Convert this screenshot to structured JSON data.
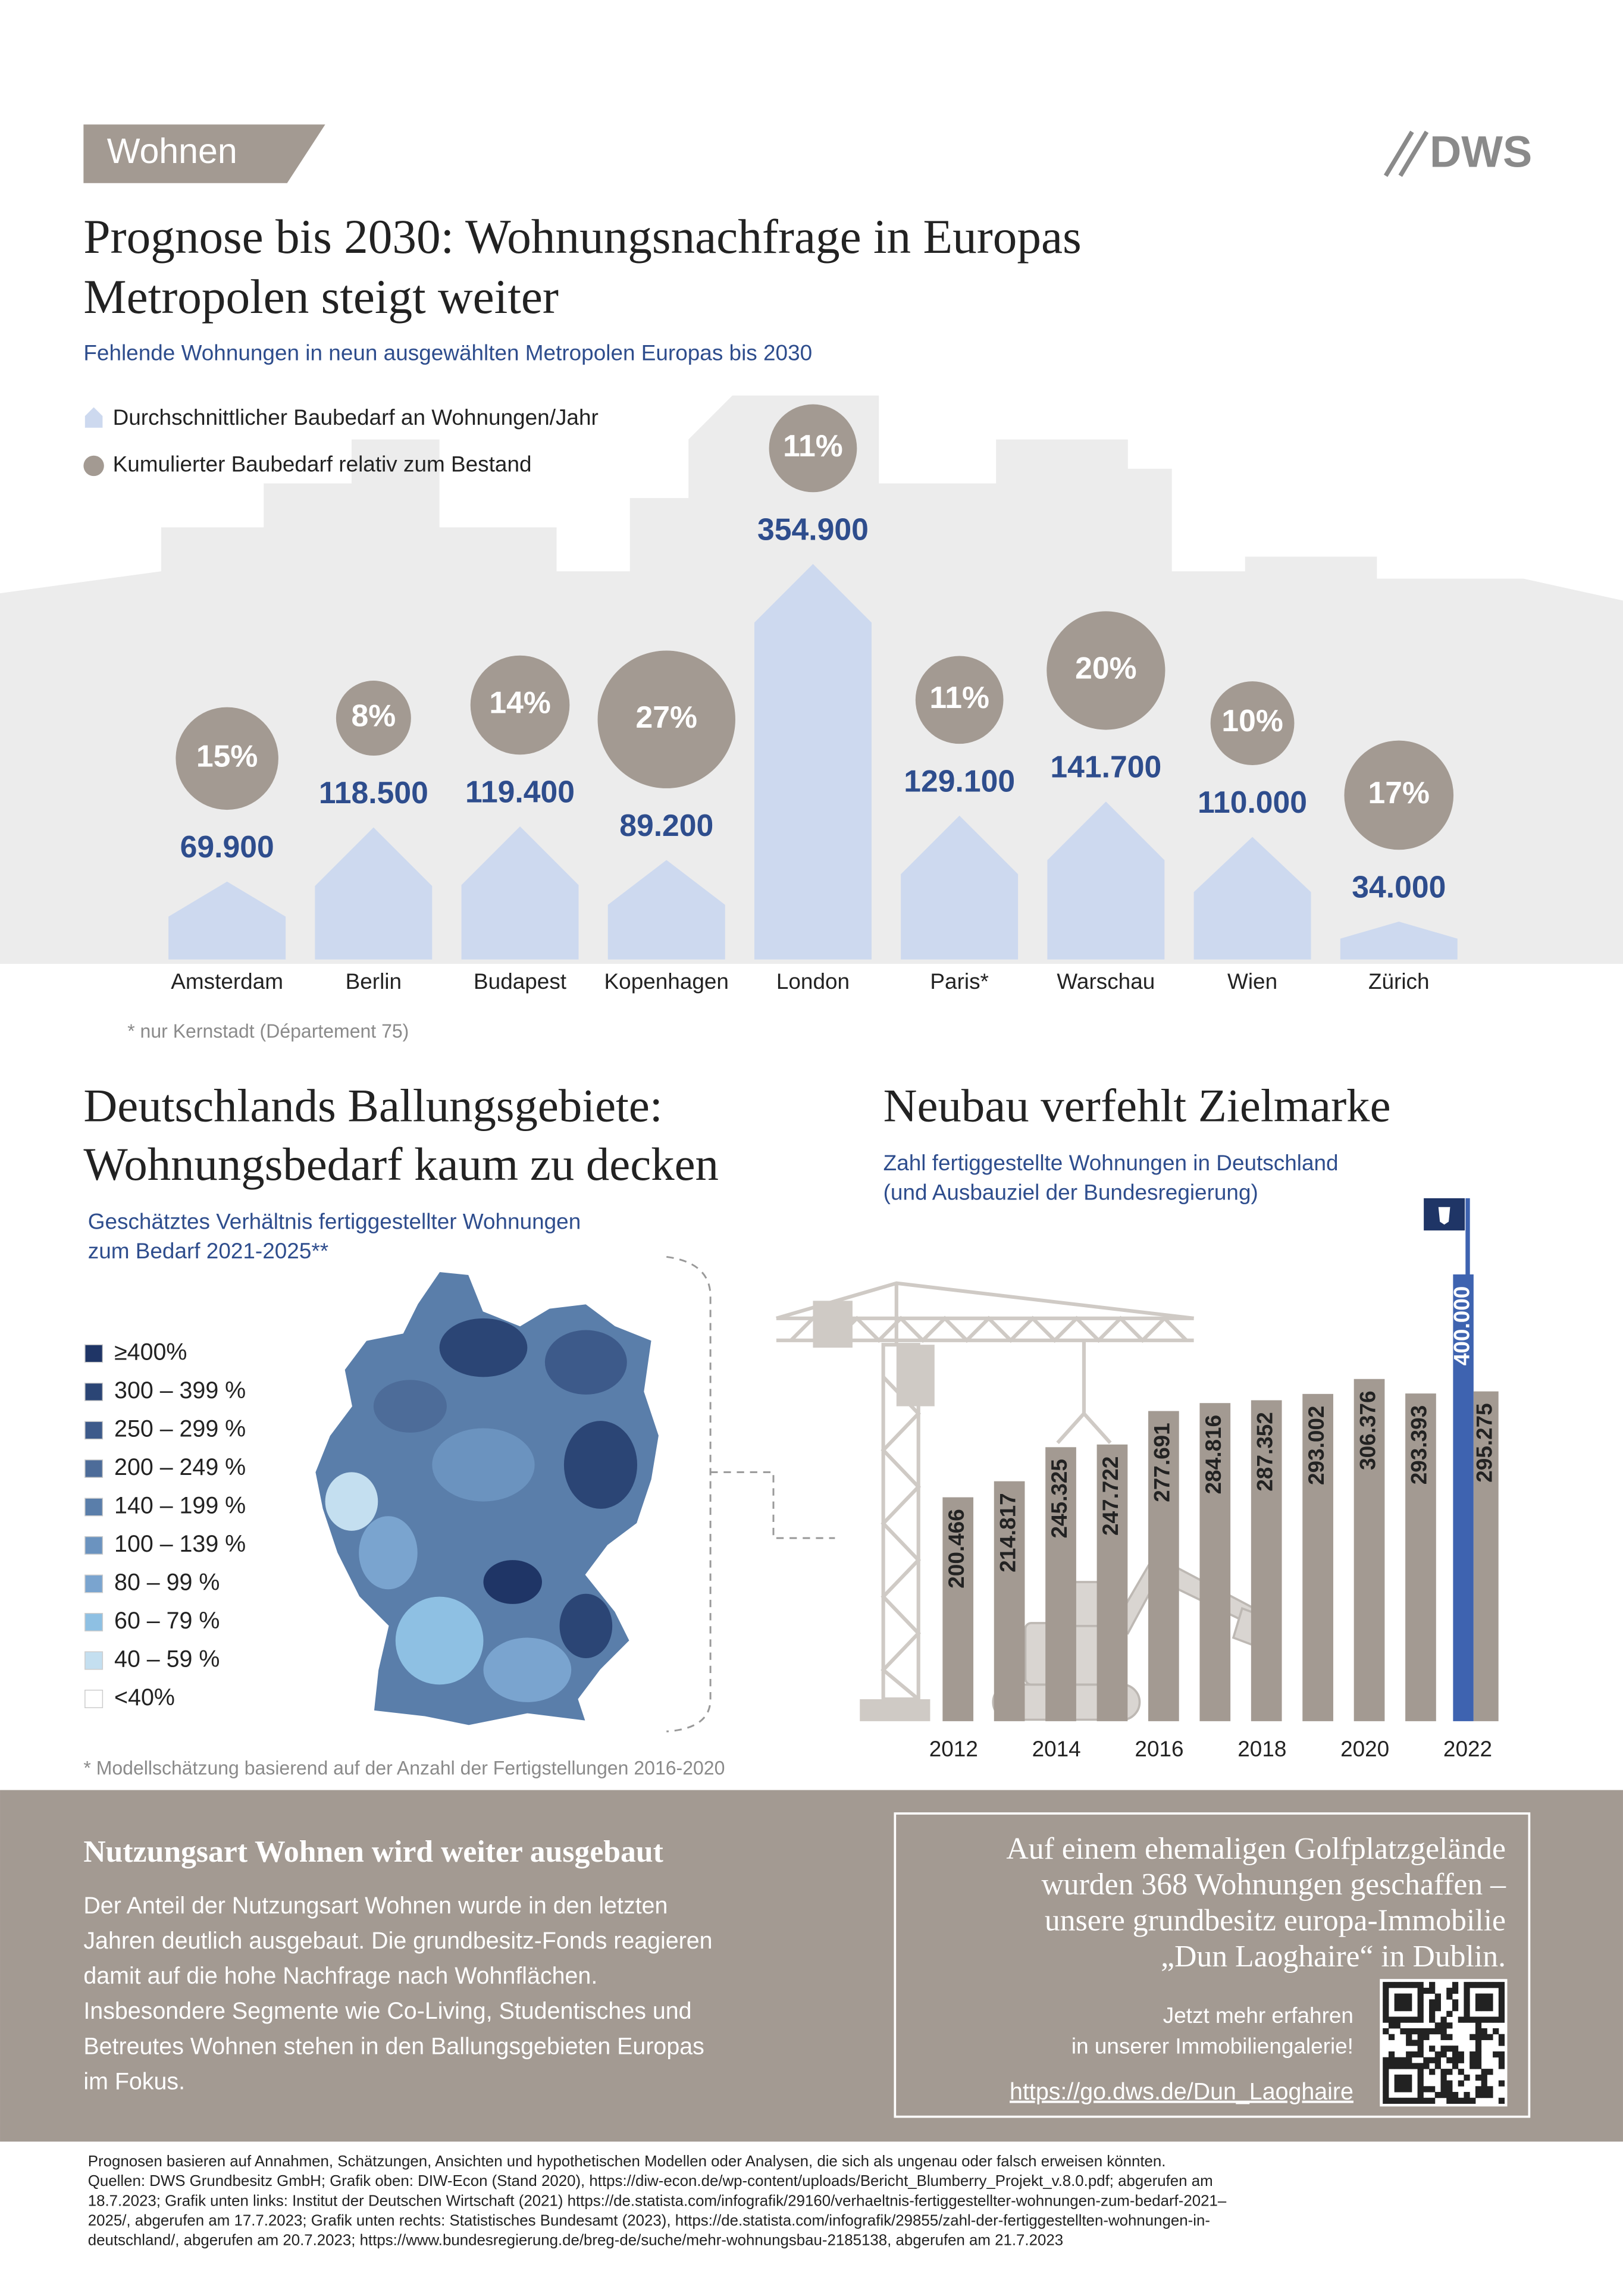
{
  "header": {
    "tag": "Wohnen",
    "logo": "DWS"
  },
  "chart_data": [
    {
      "type": "bar",
      "shape": "house",
      "title": [
        "Prognose bis 2030: Wohnungsnachfrage in Europas",
        "Metropolen steigt weiter"
      ],
      "subtitle": "Fehlende Wohnungen in neun ausgewählten Metropolen Europas bis 2030",
      "categories": [
        "Amsterdam",
        "Berlin",
        "Budapest",
        "Kopenhagen",
        "London",
        "Paris*",
        "Warschau",
        "Wien",
        "Zürich"
      ],
      "series": [
        {
          "name": "Durchschnittlicher Baubedarf an Wohnungen/Jahr",
          "color": "#cdd9ef",
          "values": [
            69900,
            118500,
            119400,
            89200,
            354900,
            129100,
            141700,
            110000,
            34000
          ],
          "value_labels": [
            "69.900",
            "118.500",
            "119.400",
            "89.200",
            "354.900",
            "129.100",
            "141.700",
            "110.000",
            "34.000"
          ]
        },
        {
          "name": "Kumulierter Baubedarf relativ zum Bestand",
          "color": "#a39a92",
          "type": "bubble",
          "values": [
            15,
            8,
            14,
            27,
            11,
            11,
            20,
            10,
            17
          ],
          "value_labels": [
            "15%",
            "8%",
            "14%",
            "27%",
            "11%",
            "11%",
            "20%",
            "10%",
            "17%"
          ]
        }
      ],
      "note": "* nur Kernstadt (Département 75)"
    },
    {
      "type": "bar",
      "title": "Neubau verfehlt Zielmarke",
      "subtitle": [
        "Zahl fertiggestellte Wohnungen in Deutschland",
        "(und Ausbauziel der Bundesregierung)"
      ],
      "categories": [
        "2012",
        null,
        "2014",
        null,
        "2016",
        null,
        "2018",
        null,
        "2020",
        null,
        "2022"
      ],
      "series": [
        {
          "color": "#a39a92",
          "values": [
            200466,
            214817,
            245325,
            247722,
            277691,
            284816,
            287352,
            293002,
            306376,
            293393,
            295275
          ],
          "value_labels": [
            "200.466",
            "214.817",
            "245.325",
            "247.722",
            "277.691",
            "284.816",
            "287.352",
            "293.002",
            "306.376",
            "293.393",
            "295.275"
          ]
        }
      ],
      "target": {
        "value": 400000,
        "label": "400.000",
        "color": "#3e63b0"
      }
    }
  ],
  "map": {
    "title": [
      "Deutschlands Ballungsgebiete:",
      "Wohnungsbedarf kaum zu decken"
    ],
    "subtitle": [
      "Geschätztes Verhältnis fertiggestellter Wohnungen",
      "zum Bedarf 2021-2025**"
    ],
    "legend": [
      {
        "label": "≥400%",
        "color": "#1f3566"
      },
      {
        "label": "300 – 399 %",
        "color": "#2b4575"
      },
      {
        "label": "250 – 299 %",
        "color": "#3d5a8a"
      },
      {
        "label": "200 – 249 %",
        "color": "#4d6c99"
      },
      {
        "label": "140 – 199 %",
        "color": "#5a7eaa"
      },
      {
        "label": "100 – 139 %",
        "color": "#6b93bf"
      },
      {
        "label": "80 – 99 %",
        "color": "#7aa4cf"
      },
      {
        "label": "60 – 79 %",
        "color": "#8ec0e3"
      },
      {
        "label": "40 – 59 %",
        "color": "#c4dff0"
      },
      {
        "label": "<40%",
        "color": "#ffffff"
      }
    ],
    "note": "* Modellschätzung basierend auf der Anzahl der Fertigstellungen 2016-2020"
  },
  "info": {
    "heading": "Nutzungsart Wohnen wird weiter ausgebaut",
    "paragraph": [
      "Der Anteil der Nutzungsart Wohnen wurde in den letzten",
      "Jahren deutlich ausgebaut. Die grundbesitz-Fonds reagieren",
      "damit auf die hohe Nachfrage nach Wohnflächen.",
      "Insbesondere Segmente wie Co-Living, Studentisches und",
      "Betreutes Wohnen stehen in den Ballungsgebieten Europas",
      "im Fokus."
    ]
  },
  "promo": {
    "lines": [
      "Auf einem ehemaligen Golfplatzgelände",
      "wurden 368 Wohnungen geschaffen –",
      "unsere grundbesitz europa-Immobilie",
      "„Dun Laoghaire“ in Dublin."
    ],
    "cta": [
      "Jetzt mehr erfahren",
      "in unserer Immobiliengalerie!"
    ],
    "link": "https://go.dws.de/Dun_Laoghaire"
  },
  "footer": [
    "Prognosen basieren auf Annahmen, Schätzungen, Ansichten und hypothetischen Modellen oder Analysen, die sich als ungenau oder falsch erweisen könnten.",
    "Quellen: DWS Grundbesitz GmbH; Grafik oben: DIW-Econ (Stand 2020), https://diw-econ.de/wp-content/uploads/Bericht_Blumberry_Projekt_v.8.0.pdf; abgerufen am",
    "18.7.2023; Grafik unten links: Institut der Deutschen Wirtschaft (2021) https://de.statista.com/infografik/29160/verhaeltnis-fertiggestellter-wohnungen-zum-bedarf-2021–",
    "2025/, abgerufen am 17.7.2023; Grafik unten rechts: Statistisches Bundesamt (2023), https://de.statista.com/infografik/29855/zahl-der-fertiggestellten-wohnungen-in-",
    "deutschland/, abgerufen am 20.7.2023; https://www.bundesregierung.de/breg-de/suche/mehr-wohnungsbau-2185138, abgerufen am 21.7.2023"
  ]
}
